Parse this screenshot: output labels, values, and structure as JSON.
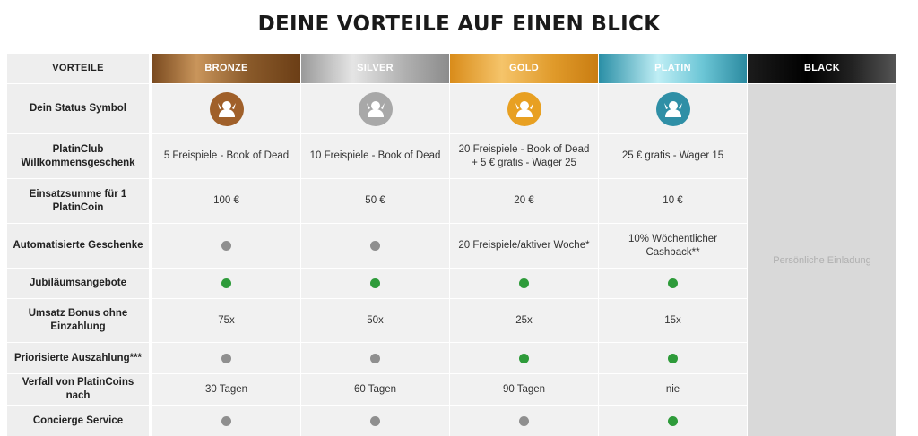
{
  "title": "DEINE VORTEILE AUF EINEN BLICK",
  "headers": {
    "label": "VORTEILE",
    "tiers": [
      "BRONZE",
      "SILVER",
      "GOLD",
      "PLATIN",
      "BLACK"
    ]
  },
  "badge_colors": [
    "#a0602a",
    "#a8a8a8",
    "#e8a022",
    "#2f8fa6"
  ],
  "black_text": "Persönliche Einladung",
  "rows": [
    {
      "label": "Dein Status Symbol",
      "type": "badge"
    },
    {
      "label": "PlatinClub Willkommensgeschenk",
      "type": "text",
      "values": [
        "5 Freispiele - Book of Dead",
        "10 Freispiele - Book of Dead",
        "20 Freispiele - Book of Dead + 5 € gratis - Wager 25",
        "25 € gratis - Wager 15"
      ]
    },
    {
      "label": "Einsatzsumme für 1 PlatinCoin",
      "type": "text",
      "values": [
        "100 €",
        "50 €",
        "20 €",
        "10 €"
      ]
    },
    {
      "label": "Automatisierte Geschenke",
      "type": "mixed",
      "values": [
        "grey",
        "grey",
        "20 Freispiele/aktiver Woche*",
        "10% Wöchentlicher Cashback**"
      ]
    },
    {
      "label": "Jubiläumsangebote",
      "type": "dot",
      "values": [
        "green",
        "green",
        "green",
        "green"
      ]
    },
    {
      "label": "Umsatz Bonus ohne Einzahlung",
      "type": "text",
      "values": [
        "75x",
        "50x",
        "25x",
        "15x"
      ]
    },
    {
      "label": "Priorisierte Auszahlung***",
      "type": "dot",
      "values": [
        "grey",
        "grey",
        "green",
        "green"
      ]
    },
    {
      "label": "Verfall von PlatinCoins nach",
      "type": "text",
      "values": [
        "30 Tagen",
        "60 Tagen",
        "90 Tagen",
        "nie"
      ]
    },
    {
      "label": "Concierge Service",
      "type": "dot",
      "values": [
        "grey",
        "grey",
        "grey",
        "green"
      ]
    }
  ]
}
